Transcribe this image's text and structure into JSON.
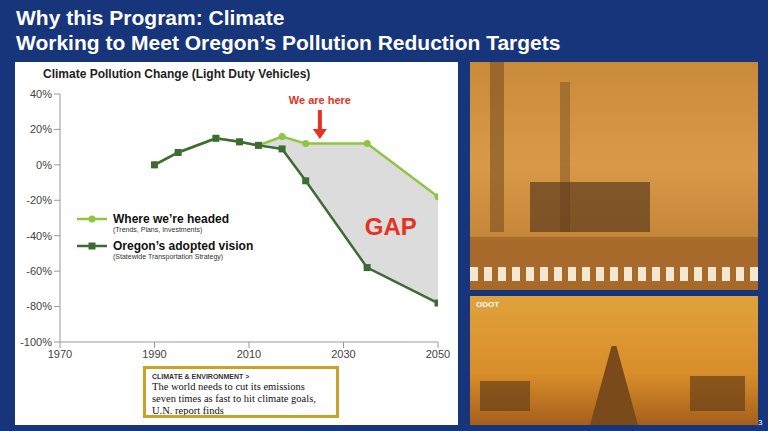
{
  "slide": {
    "title": "Why this Program: Climate",
    "subtitle": "Working to Meet Oregon’s Pollution Reduction Targets",
    "clipping": {
      "section": "CLIMATE & ENVIRONMENT >",
      "headline": "The world needs to cut its emissions seven times as fast to hit climate goals, U.N. report finds"
    },
    "photo_credit": "ODOT",
    "page_number": "3"
  },
  "chart_data": {
    "type": "line",
    "title": "Climate Pollution Change (Light Duty Vehicles)",
    "x": [
      1990,
      1995,
      2003,
      2008,
      2012,
      2017,
      2022,
      2035,
      2050
    ],
    "series": [
      {
        "name": "Where we’re headed",
        "description": "(Trends, Plans, Investments)",
        "color": "#8dc63f",
        "marker": "circle",
        "values": [
          0,
          7,
          15,
          13,
          11,
          16,
          12,
          12,
          -18
        ]
      },
      {
        "name": "Oregon’s adopted vision",
        "description": "(Statewide Transportation Strategy)",
        "color": "#3d6b33",
        "marker": "square",
        "values": [
          0,
          7,
          15,
          13,
          11,
          9,
          -9,
          -58,
          -78
        ]
      }
    ],
    "xlim": [
      1970,
      2050
    ],
    "xticks": [
      1970,
      1990,
      2010,
      2030,
      2050
    ],
    "ylim": [
      -100,
      40
    ],
    "yticks": [
      {
        "value": 40,
        "label": "40%"
      },
      {
        "value": 20,
        "label": "20%"
      },
      {
        "value": 0,
        "label": "0%"
      },
      {
        "value": -20,
        "label": "-20%"
      },
      {
        "value": -40,
        "label": "-40%"
      },
      {
        "value": -60,
        "label": "-60%"
      },
      {
        "value": -80,
        "label": "-80%"
      },
      {
        "value": -100,
        "label": "-100%"
      }
    ],
    "grid": false,
    "legend": "lower left",
    "annotations": [
      {
        "text": "We are here",
        "x": 2025,
        "y": 14,
        "color": "#e53222"
      },
      {
        "text": "GAP",
        "x": 2040,
        "y": -36,
        "color": "#e53222"
      }
    ]
  }
}
